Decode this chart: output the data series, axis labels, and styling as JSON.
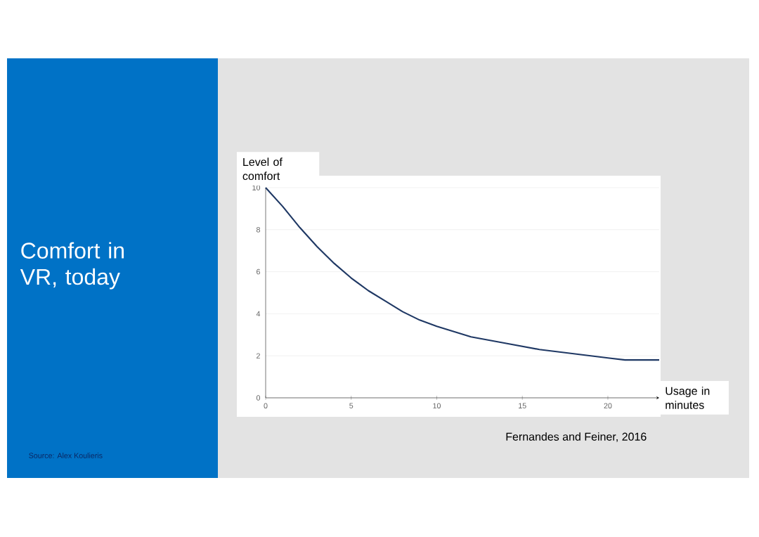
{
  "chart_data": {
    "type": "line",
    "title": "Comfort in VR, today",
    "xlabel": "Usage in minutes",
    "ylabel": "Level of comfort",
    "annotations": [
      "Fernandes and Feiner, 2016",
      "Source: Alex Koulieris"
    ],
    "x": [
      0,
      1,
      2,
      3,
      4,
      5,
      6,
      7,
      8,
      9,
      10,
      12,
      14,
      16,
      18,
      20,
      21,
      22,
      23
    ],
    "values": [
      10,
      9.1,
      8.1,
      7.2,
      6.4,
      5.7,
      5.1,
      4.6,
      4.1,
      3.7,
      3.4,
      2.9,
      2.6,
      2.3,
      2.1,
      1.9,
      1.8,
      1.8,
      1.8
    ],
    "color": "#1f3864",
    "xlim": [
      0,
      23
    ],
    "ylim": [
      0,
      10
    ],
    "xticks": [
      0,
      5,
      10,
      15,
      20
    ],
    "yticks": [
      0,
      2,
      4,
      6,
      8,
      10
    ],
    "grid": "y"
  }
}
